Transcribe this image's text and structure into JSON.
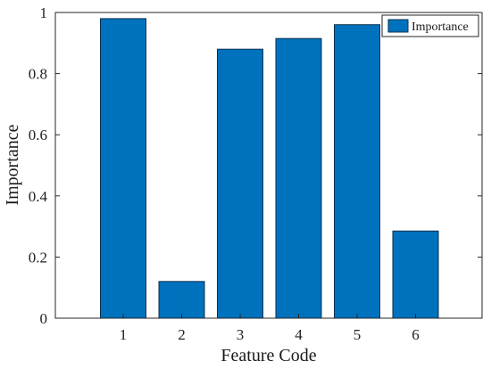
{
  "chart_data": {
    "type": "bar",
    "categories": [
      "1",
      "2",
      "3",
      "4",
      "5",
      "6"
    ],
    "series": [
      {
        "name": "Importance",
        "values": [
          0.98,
          0.12,
          0.88,
          0.915,
          0.96,
          0.285
        ]
      }
    ],
    "xlabel": "Feature Code",
    "ylabel": "Importance",
    "ylim": [
      0,
      1
    ],
    "yticks": [
      "0",
      "0.2",
      "0.4",
      "0.6",
      "0.8",
      "1"
    ],
    "grid": false,
    "legend_position": "top-right",
    "bar_color": "#0072BD",
    "bar_edge_color": "#0b2f4f"
  }
}
